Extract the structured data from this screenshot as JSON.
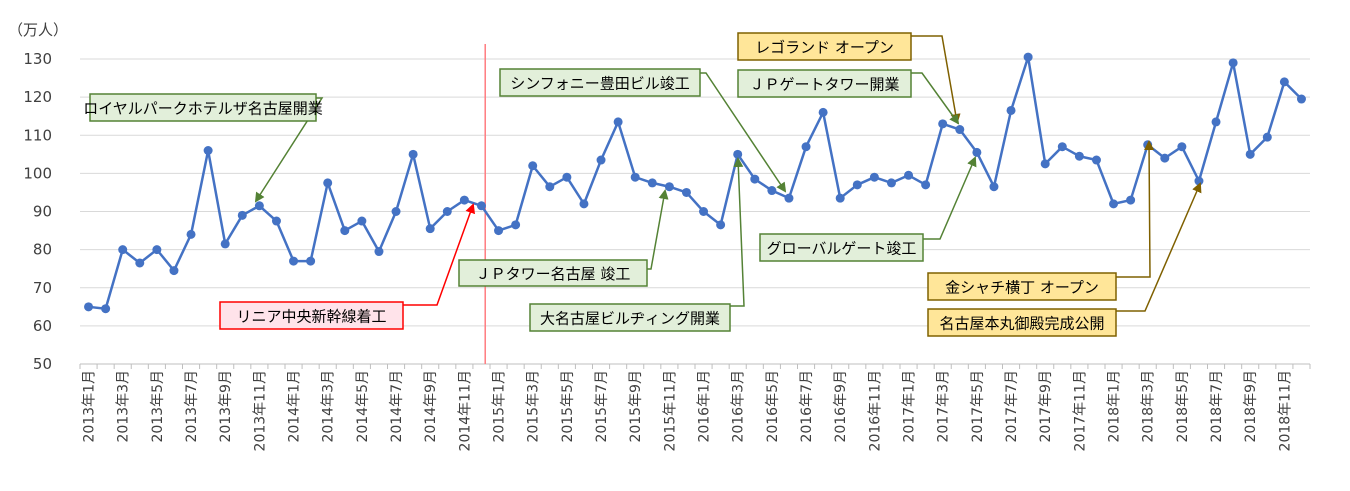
{
  "chart_data": {
    "type": "line",
    "unit_label": "（万人）",
    "ylim": [
      50,
      130
    ],
    "yticks": [
      50,
      60,
      70,
      80,
      90,
      100,
      110,
      120,
      130
    ],
    "grid": true,
    "legend": "none",
    "x": [
      "2013年1月",
      "2013年2月",
      "2013年3月",
      "2013年4月",
      "2013年5月",
      "2013年6月",
      "2013年7月",
      "2013年8月",
      "2013年9月",
      "2013年10月",
      "2013年11月",
      "2013年12月",
      "2014年1月",
      "2014年2月",
      "2014年3月",
      "2014年4月",
      "2014年5月",
      "2014年6月",
      "2014年7月",
      "2014年8月",
      "2014年9月",
      "2014年10月",
      "2014年11月",
      "2014年12月",
      "2015年1月",
      "2015年2月",
      "2015年3月",
      "2015年4月",
      "2015年5月",
      "2015年6月",
      "2015年7月",
      "2015年8月",
      "2015年9月",
      "2015年10月",
      "2015年11月",
      "2015年12月",
      "2016年1月",
      "2016年2月",
      "2016年3月",
      "2016年4月",
      "2016年5月",
      "2016年6月",
      "2016年7月",
      "2016年8月",
      "2016年9月",
      "2016年10月",
      "2016年11月",
      "2016年12月",
      "2017年1月",
      "2017年2月",
      "2017年3月",
      "2017年4月",
      "2017年5月",
      "2017年6月",
      "2017年7月",
      "2017年8月",
      "2017年9月",
      "2017年10月",
      "2017年11月",
      "2017年12月",
      "2018年1月",
      "2018年2月",
      "2018年3月",
      "2018年4月",
      "2018年5月",
      "2018年6月",
      "2018年7月",
      "2018年8月",
      "2018年9月",
      "2018年10月",
      "2018年11月",
      "2018年12月"
    ],
    "xtick_labels": [
      "2013年1月",
      "2013年3月",
      "2013年5月",
      "2013年7月",
      "2013年9月",
      "2013年11月",
      "2014年1月",
      "2014年3月",
      "2014年5月",
      "2014年7月",
      "2014年9月",
      "2014年11月",
      "2015年1月",
      "2015年3月",
      "2015年5月",
      "2015年7月",
      "2015年9月",
      "2015年11月",
      "2016年1月",
      "2016年3月",
      "2016年5月",
      "2016年7月",
      "2016年9月",
      "2016年11月",
      "2017年1月",
      "2017年3月",
      "2017年5月",
      "2017年7月",
      "2017年9月",
      "2017年11月",
      "2018年1月",
      "2018年3月",
      "2018年5月",
      "2018年7月",
      "2018年9月",
      "2018年11月"
    ],
    "series": [
      {
        "color": "#4472C4",
        "values": [
          65,
          64.5,
          80,
          76.5,
          80,
          74.5,
          84,
          106,
          81.5,
          89,
          91.5,
          87.5,
          77,
          77,
          97.5,
          85,
          87.5,
          79.5,
          90,
          105,
          85.5,
          90,
          93,
          91.5,
          85,
          86.5,
          102,
          96.5,
          99,
          92,
          103.5,
          113.5,
          99,
          97.5,
          96.5,
          95,
          90,
          86.5,
          105,
          98.5,
          95.5,
          93.5,
          107,
          116,
          93.5,
          97,
          99,
          97.5,
          99.5,
          97,
          113,
          111.5,
          105.5,
          96.5,
          116.5,
          130.5,
          102.5,
          107,
          104.5,
          103.5,
          92,
          93,
          107.5,
          104,
          107,
          98,
          113.5,
          129,
          105,
          109.5,
          124,
          119.5
        ]
      }
    ],
    "reference_line": {
      "x": "2014年12月",
      "color": "#FF7C80"
    },
    "annotations": [
      {
        "text": "ロイヤルパークホテルザ名古屋開業",
        "target": "2013年11月",
        "style": "green"
      },
      {
        "text": "リニア中央新幹線着工",
        "target": "2014年12月",
        "style": "red"
      },
      {
        "text": "ＪＰタワー名古屋 竣工",
        "target": "2015年11月",
        "style": "green"
      },
      {
        "text": "シンフォニー豊田ビル竣工",
        "target": "2016年6月",
        "style": "green"
      },
      {
        "text": "大名古屋ビルヂィング開業",
        "target": "2016年3月",
        "style": "green"
      },
      {
        "text": "レゴランド オープン",
        "target": "2017年4月",
        "style": "gold"
      },
      {
        "text": "ＪＰゲートタワー開業",
        "target": "2017年4月",
        "style": "green"
      },
      {
        "text": "グローバルゲート竣工",
        "target": "2017年5月",
        "style": "green"
      },
      {
        "text": "金シャチ横丁 オープン",
        "target": "2018年3月",
        "style": "gold"
      },
      {
        "text": "名古屋本丸御殿完成公開",
        "target": "2018年6月",
        "style": "gold"
      }
    ],
    "box_styles": {
      "green": {
        "fill": "#E2EFDA",
        "stroke": "#548235",
        "arrow": "#548235"
      },
      "red": {
        "fill": "#FFE3EA",
        "stroke": "#FF0000",
        "arrow": "#FF0000"
      },
      "gold": {
        "fill": "#FFE699",
        "stroke": "#7F6000",
        "arrow": "#7F6000"
      }
    }
  }
}
